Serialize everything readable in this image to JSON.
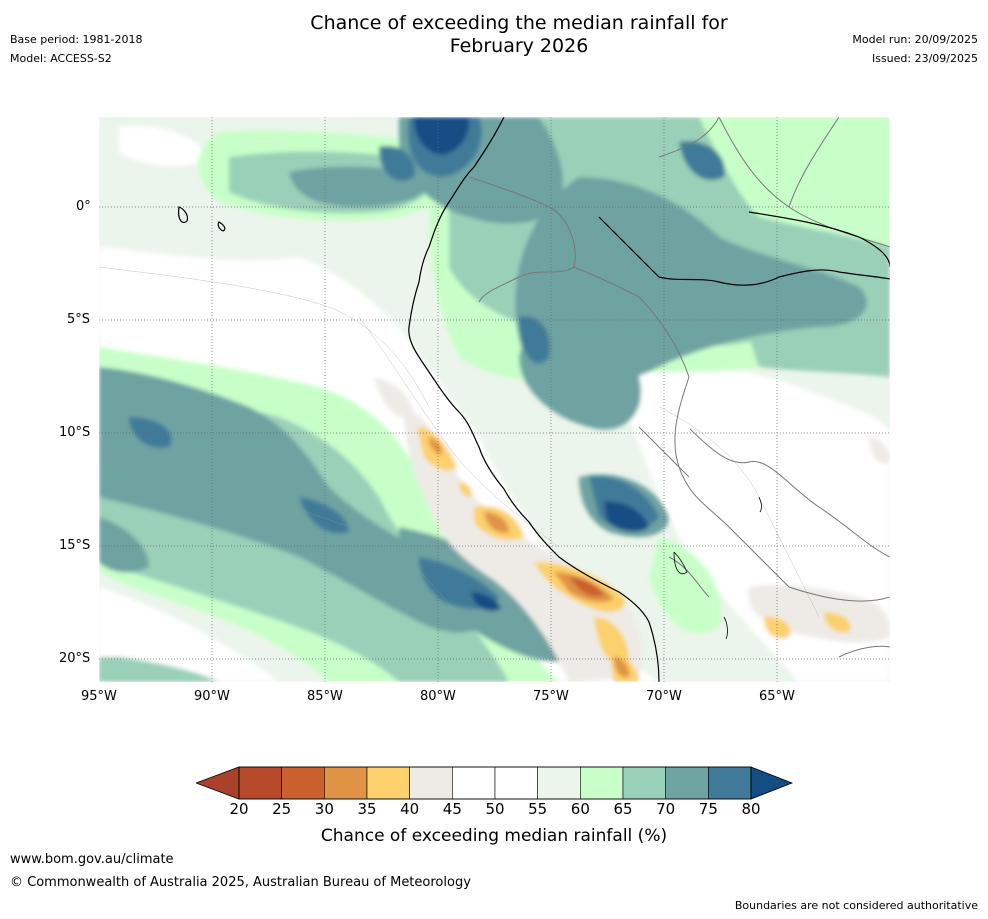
{
  "header": {
    "title_line1": "Chance of exceeding the median rainfall for",
    "title_line2": "February 2026",
    "base_period": "Base period: 1981-2018",
    "model": "Model: ACCESS-S2",
    "model_run": "Model run: 20/09/2025",
    "issued": "Issued: 23/09/2025"
  },
  "map": {
    "lat_labels": [
      "0°",
      "5°S",
      "10°S",
      "15°S",
      "20°S"
    ],
    "lon_labels": [
      "95°W",
      "90°W",
      "85°W",
      "80°W",
      "75°W",
      "70°W",
      "65°W"
    ]
  },
  "colorbar": {
    "ticks": [
      "20",
      "25",
      "30",
      "35",
      "40",
      "45",
      "50",
      "55",
      "60",
      "65",
      "70",
      "75",
      "80"
    ],
    "colors": [
      "#a9422a",
      "#b6492a",
      "#c9602e",
      "#e09345",
      "#fcd06c",
      "#eeebe6",
      "#ffffff",
      "#ffffff",
      "#ebf5eb",
      "#c8ffc8",
      "#9ad0b8",
      "#6ea3a2",
      "#417a99",
      "#144d84"
    ],
    "label": "Chance of exceeding median rainfall (%)"
  },
  "footer": {
    "website": "www.bom.gov.au/climate",
    "copyright": "© Commonwealth of Australia 2025, Australian Bureau of Meteorology",
    "disclaimer": "Boundaries are not considered authoritative"
  }
}
